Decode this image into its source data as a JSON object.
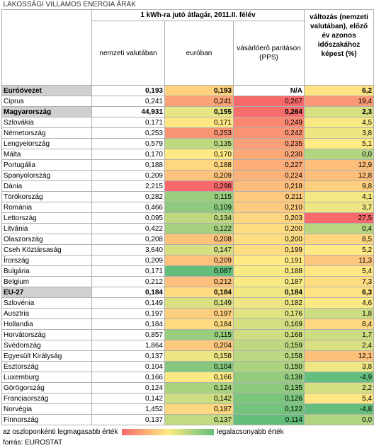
{
  "title": "LAKOSSÁGI VILLAMOS ENERGIA ÁRAK",
  "header": {
    "group": "1 kWh-ra jutó átlagár, 2011.II. félév",
    "columns": [
      "nemzeti valutában",
      "euróban",
      "vásárlóerő paritáson (PPS)",
      "változás (nemzeti valutában), előző év azonos időszakához képest (%)"
    ]
  },
  "rows": [
    {
      "label": "Euróövezet",
      "values": [
        "0,193",
        "0,193",
        "N/A",
        "6,2"
      ],
      "bold": true
    },
    {
      "label": "Ciprus",
      "values": [
        "0,241",
        "0,241",
        "0,267",
        "19,4"
      ]
    },
    {
      "label": "Magyarország",
      "values": [
        "44,931",
        "0,155",
        "0,264",
        "2,3"
      ],
      "bold": true
    },
    {
      "label": "Szlovákia",
      "values": [
        "0,171",
        "0,171",
        "0,249",
        "4,5"
      ]
    },
    {
      "label": "Németország",
      "values": [
        "0,253",
        "0,253",
        "0,242",
        "3,8"
      ]
    },
    {
      "label": "Lengyelország",
      "values": [
        "0,579",
        "0,135",
        "0,235",
        "5,1"
      ]
    },
    {
      "label": "Málta",
      "values": [
        "0,170",
        "0,170",
        "0,230",
        "0,0"
      ]
    },
    {
      "label": "Portugália",
      "values": [
        "0,188",
        "0,188",
        "0,227",
        "12,9"
      ]
    },
    {
      "label": "Spanyolország",
      "values": [
        "0,209",
        "0,209",
        "0,224",
        "12,8"
      ]
    },
    {
      "label": "Dánia",
      "values": [
        "2,215",
        "0,298",
        "0,218",
        "9,8"
      ]
    },
    {
      "label": "Törökország",
      "values": [
        "0,282",
        "0,115",
        "0,211",
        "4,1"
      ]
    },
    {
      "label": "Románia",
      "values": [
        "0,466",
        "0,109",
        "0,210",
        "3,7"
      ]
    },
    {
      "label": "Lettország",
      "values": [
        "0,095",
        "0,134",
        "0,203",
        "27,5"
      ]
    },
    {
      "label": "Litvánia",
      "values": [
        "0,422",
        "0,122",
        "0,200",
        "0,4"
      ]
    },
    {
      "label": "Olaszország",
      "values": [
        "0,208",
        "0,208",
        "0,200",
        "8,5"
      ]
    },
    {
      "label": "Cseh Köztársaság",
      "values": [
        "3,640",
        "0,147",
        "0,199",
        "5,2"
      ]
    },
    {
      "label": "Írország",
      "values": [
        "0,209",
        "0,209",
        "0,191",
        "11,3"
      ]
    },
    {
      "label": "Bulgária",
      "values": [
        "0,171",
        "0,087",
        "0,188",
        "5,4"
      ]
    },
    {
      "label": "Belgium",
      "values": [
        "0,212",
        "0,212",
        "0,187",
        "7,3"
      ]
    },
    {
      "label": "EU-27",
      "values": [
        "0,184",
        "0,184",
        "0,184",
        "6,3"
      ],
      "bold": true
    },
    {
      "label": "Szlovénia",
      "values": [
        "0,149",
        "0,149",
        "0,182",
        "4,6"
      ]
    },
    {
      "label": "Ausztria",
      "values": [
        "0,197",
        "0,197",
        "0,176",
        "1,8"
      ]
    },
    {
      "label": "Hollandia",
      "values": [
        "0,184",
        "0,184",
        "0,169",
        "8,4"
      ]
    },
    {
      "label": "Horvátország",
      "values": [
        "0,857",
        "0,115",
        "0,168",
        "1,7"
      ]
    },
    {
      "label": "Svédország",
      "values": [
        "1,864",
        "0,204",
        "0,159",
        "2,4"
      ]
    },
    {
      "label": "Egyesült Királyság",
      "values": [
        "0,137",
        "0,158",
        "0,158",
        "12,1"
      ]
    },
    {
      "label": "Észtország",
      "values": [
        "0,104",
        "0,104",
        "0,150",
        "3,8"
      ]
    },
    {
      "label": "Luxemburg",
      "values": [
        "0,166",
        "0,166",
        "0,138",
        "-4,9"
      ]
    },
    {
      "label": "Görögország",
      "values": [
        "0,124",
        "0,124",
        "0,135",
        "2,2"
      ]
    },
    {
      "label": "Franciaország",
      "values": [
        "0,142",
        "0,142",
        "0,126",
        "5,4"
      ]
    },
    {
      "label": "Norvégia",
      "values": [
        "1,452",
        "0,187",
        "0,122",
        "-4,8"
      ]
    },
    {
      "label": "Finnország",
      "values": [
        "0,137",
        "0,137",
        "0,114",
        "0,0"
      ]
    }
  ],
  "legend": {
    "high": "az oszloponkénti legmagasabb érték",
    "low": "legalacsonyabb érték"
  },
  "source": "forrás: EUROSTAT"
}
